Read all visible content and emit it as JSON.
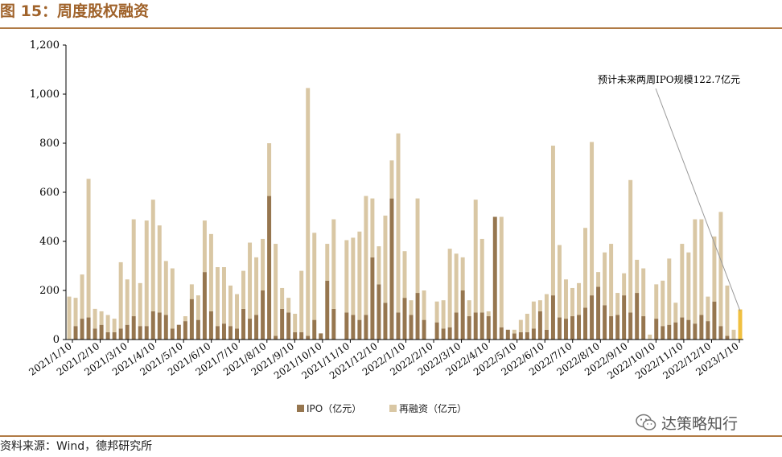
{
  "figure": {
    "title": "图 15：周度股权融资",
    "source": "资料来源：Wind，德邦研究所",
    "watermark": "达策略知行",
    "watermark_icon": "wechat-icon"
  },
  "colors": {
    "ipo": "#96764f",
    "refinancing": "#d9c7a4",
    "forecast": "#f0c040",
    "accent": "#a0632b",
    "axis": "#000000"
  },
  "chart_data": {
    "type": "bar",
    "stacked": true,
    "title": "",
    "xlabel": "",
    "ylabel": "",
    "ylim": [
      0,
      1200
    ],
    "yticks": [
      0,
      200,
      400,
      600,
      800,
      1000,
      1200
    ],
    "ytick_labels": [
      "0",
      "200",
      "400",
      "600",
      "800",
      "1,000",
      "1,200"
    ],
    "grid": false,
    "legend_position": "bottom",
    "x_tick_labels": [
      "2021/1/10",
      "2021/2/10",
      "2021/3/10",
      "2021/4/10",
      "2021/5/10",
      "2021/6/10",
      "2021/7/10",
      "2021/8/10",
      "2021/9/10",
      "2021/10/10",
      "2021/11/10",
      "2021/12/10",
      "2022/1/10",
      "2022/2/10",
      "2022/3/10",
      "2022/4/10",
      "2022/5/10",
      "2022/6/10",
      "2022/7/10",
      "2022/8/10",
      "2022/9/10",
      "2022/10/10",
      "2022/11/10",
      "2022/12/10",
      "2023/1/10"
    ],
    "series": [
      {
        "name": "IPO（亿元）",
        "values": [
          0,
          55,
          85,
          90,
          45,
          60,
          30,
          30,
          45,
          60,
          95,
          55,
          55,
          115,
          110,
          100,
          45,
          60,
          75,
          165,
          80,
          275,
          115,
          55,
          65,
          55,
          45,
          125,
          85,
          100,
          200,
          585,
          15,
          125,
          110,
          30,
          30,
          15,
          80,
          25,
          240,
          125,
          0,
          110,
          100,
          80,
          100,
          335,
          225,
          150,
          575,
          110,
          170,
          100,
          190,
          80,
          0,
          70,
          45,
          50,
          110,
          200,
          95,
          110,
          110,
          95,
          500,
          50,
          40,
          25,
          30,
          30,
          45,
          115,
          40,
          180,
          90,
          85,
          95,
          100,
          130,
          180,
          215,
          140,
          95,
          100,
          180,
          110,
          190,
          95,
          0,
          85,
          55,
          60,
          70,
          90,
          80,
          65,
          100,
          75,
          155,
          55,
          15,
          0
        ],
        "refinancing": [
          175,
          115,
          180,
          565,
          80,
          55,
          70,
          55,
          270,
          185,
          395,
          175,
          430,
          455,
          355,
          220,
          245,
          0,
          20,
          60,
          100,
          210,
          315,
          240,
          230,
          165,
          140,
          155,
          310,
          235,
          210,
          215,
          375,
          85,
          60,
          75,
          250,
          1010,
          355,
          0,
          150,
          365,
          0,
          295,
          315,
          360,
          485,
          240,
          155,
          355,
          155,
          730,
          190,
          60,
          385,
          120,
          0,
          85,
          115,
          320,
          240,
          135,
          65,
          460,
          300,
          20,
          0,
          450,
          0,
          15,
          50,
          75,
          110,
          45,
          145,
          610,
          295,
          160,
          115,
          130,
          325,
          625,
          60,
          215,
          295,
          90,
          90,
          540,
          135,
          195,
          20,
          140,
          185,
          270,
          80,
          300,
          275,
          425,
          390,
          100,
          265,
          465,
          205,
          40
        ]
      },
      {
        "name": "再融资（亿元）",
        "values": []
      }
    ],
    "forecast": {
      "label": "预计未来两周IPO规模122.7亿元",
      "value": 122.7
    }
  }
}
